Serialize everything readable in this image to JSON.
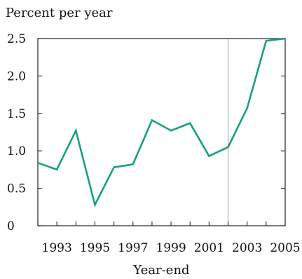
{
  "chart_data": {
    "type": "line",
    "title": "",
    "ylabel": "Percent per year",
    "xlabel": "Year-end",
    "x": [
      1992,
      1993,
      1994,
      1995,
      1996,
      1997,
      1998,
      1999,
      2000,
      2001,
      2002,
      2003,
      2004,
      2005
    ],
    "series": [
      {
        "name": "",
        "color": "#16a085",
        "values": [
          0.84,
          0.75,
          1.27,
          0.28,
          0.78,
          0.82,
          1.41,
          1.27,
          1.37,
          0.93,
          1.05,
          1.57,
          2.47,
          2.5
        ]
      }
    ],
    "xlim": [
      1992,
      2005
    ],
    "ylim": [
      0,
      2.5
    ],
    "yticks": [
      0,
      0.5,
      1.0,
      1.5,
      2.0,
      2.5
    ],
    "ytick_labels": [
      "0",
      "0.5",
      "1.0",
      "1.5",
      "2.0",
      "2.5"
    ],
    "xticks": [
      1993,
      1995,
      1997,
      1999,
      2001,
      2003,
      2005
    ],
    "xtick_labels": [
      "1993",
      "1995",
      "1997",
      "1999",
      "2001",
      "2003",
      "2005"
    ],
    "xminor_ticks": [
      1992,
      1993,
      1994,
      1995,
      1996,
      1997,
      1998,
      1999,
      2000,
      2001,
      2002,
      2003,
      2004,
      2005
    ],
    "reference_line_x": 2002,
    "reference_line_color": "#b9b9b9",
    "grid": false,
    "legend": "none"
  }
}
